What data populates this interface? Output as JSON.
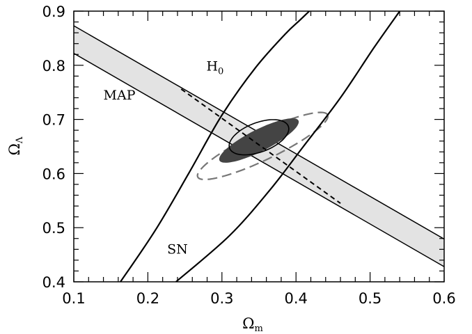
{
  "chart_data": {
    "type": "line",
    "xlabel": "Ω",
    "xlabel_sub": "m",
    "ylabel": "Ω",
    "ylabel_sub": "Λ",
    "xlim": [
      0.1,
      0.6
    ],
    "ylim": [
      0.4,
      0.9
    ],
    "xticks": [
      0.1,
      0.2,
      0.3,
      0.4,
      0.5,
      0.6
    ],
    "yticks": [
      0.4,
      0.5,
      0.6,
      0.7,
      0.8,
      0.9
    ],
    "xtick_labels": [
      "0.1",
      "0.2",
      "0.3",
      "0.4",
      "0.5",
      "0.6"
    ],
    "ytick_labels": [
      "0.4",
      "0.5",
      "0.6",
      "0.7",
      "0.8",
      "0.9"
    ],
    "grid": false,
    "annotations": [
      {
        "id": "map",
        "text": "MAP",
        "x": 0.14,
        "y": 0.737
      },
      {
        "id": "h0",
        "text": "H",
        "sub": "0",
        "x": 0.279,
        "y": 0.79
      },
      {
        "id": "sn",
        "text": "SN",
        "x": 0.226,
        "y": 0.452
      }
    ],
    "map_band": {
      "upper": [
        [
          0.1,
          0.873
        ],
        [
          0.6,
          0.479
        ]
      ],
      "lower": [
        [
          0.1,
          0.822
        ],
        [
          0.6,
          0.428
        ]
      ],
      "fill": "#e3e3e3",
      "stroke": "#000000"
    },
    "sn_curves": [
      [
        [
          0.163,
          0.4
        ],
        [
          0.21,
          0.495
        ],
        [
          0.255,
          0.6
        ],
        [
          0.3,
          0.708
        ],
        [
          0.345,
          0.795
        ],
        [
          0.385,
          0.857
        ],
        [
          0.405,
          0.883
        ],
        [
          0.418,
          0.9
        ]
      ],
      [
        [
          0.238,
          0.4
        ],
        [
          0.31,
          0.485
        ],
        [
          0.365,
          0.57
        ],
        [
          0.41,
          0.65
        ],
        [
          0.46,
          0.74
        ],
        [
          0.505,
          0.832
        ],
        [
          0.54,
          0.9
        ]
      ]
    ],
    "h0_line": [
      [
        0.245,
        0.756
      ],
      [
        0.46,
        0.545
      ]
    ],
    "dashed_ellipse": {
      "cx": 0.355,
      "cy": 0.651,
      "rx": 0.105,
      "ry": 0.024,
      "angle_deg": 34,
      "stroke": "#777777"
    },
    "filled_ellipse": {
      "cx": 0.35,
      "cy": 0.661,
      "rx": 0.065,
      "ry": 0.0185,
      "angle_deg": 36,
      "fill": "#444444"
    },
    "solid_ellipse": {
      "cx": 0.35,
      "cy": 0.667,
      "rx": 0.045,
      "ry": 0.0255,
      "angle_deg": 33,
      "stroke": "#000000"
    }
  }
}
